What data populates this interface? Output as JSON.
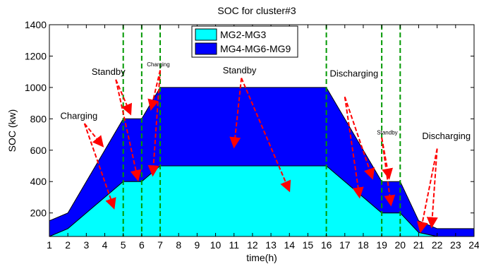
{
  "chart_data": {
    "type": "area",
    "title": "SOC for cluster#3",
    "xlabel": "time(h)",
    "ylabel": "SOC (kw)",
    "xlim": [
      1,
      24
    ],
    "ylim": [
      50,
      1400
    ],
    "xticks": [
      1,
      2,
      3,
      4,
      5,
      6,
      7,
      8,
      9,
      10,
      11,
      12,
      13,
      14,
      15,
      16,
      17,
      18,
      19,
      20,
      21,
      22,
      23,
      24
    ],
    "yticks": [
      200,
      400,
      600,
      800,
      1000,
      1200,
      1400
    ],
    "stacked": true,
    "grid": false,
    "legend_position": "top-center",
    "series": [
      {
        "name": "MG2-MG3",
        "color": "#00ffff",
        "points": [
          [
            1,
            50
          ],
          [
            2,
            100
          ],
          [
            5,
            400
          ],
          [
            6,
            400
          ],
          [
            7,
            500
          ],
          [
            16,
            500
          ],
          [
            19,
            200
          ],
          [
            20,
            200
          ],
          [
            21,
            75
          ],
          [
            22,
            50
          ],
          [
            24,
            50
          ]
        ]
      },
      {
        "name": "MG4-MG6-MG9",
        "color": "#0000ff",
        "points": [
          [
            1,
            100
          ],
          [
            2,
            100
          ],
          [
            5,
            400
          ],
          [
            6,
            400
          ],
          [
            7,
            500
          ],
          [
            16,
            500
          ],
          [
            19,
            200
          ],
          [
            20,
            200
          ],
          [
            21,
            75
          ],
          [
            22,
            50
          ],
          [
            24,
            50
          ]
        ]
      }
    ],
    "vertical_lines": [
      5,
      6,
      7,
      16,
      19,
      20
    ],
    "vertical_line_color": "#009900",
    "annotation_color": "#ff0000",
    "annotations": [
      {
        "text": "Charging",
        "x": 2.6,
        "y": 800,
        "size": 13,
        "arrows": [
          [
            3.9,
            625
          ],
          [
            4.5,
            230
          ]
        ],
        "from": [
          2.9,
          770
        ]
      },
      {
        "text": "Standby",
        "x": 4.2,
        "y": 1080,
        "size": 13,
        "arrows": [
          [
            5.4,
            830
          ],
          [
            5.8,
            410
          ]
        ],
        "from": [
          4.6,
          1050
        ]
      },
      {
        "text": "Charging",
        "x": 6.9,
        "y": 1135,
        "size": 8,
        "arrows": [
          [
            6.5,
            860
          ],
          [
            6.6,
            440
          ]
        ],
        "from": [
          7.0,
          1110
        ]
      },
      {
        "text": "Standby",
        "x": 11.3,
        "y": 1090,
        "size": 13,
        "arrows": [
          [
            11.0,
            620
          ],
          [
            14.0,
            340
          ]
        ],
        "from": [
          11.4,
          1060
        ]
      },
      {
        "text": "Discharging",
        "x": 17.5,
        "y": 1070,
        "size": 13,
        "arrows": [
          [
            18.5,
            420
          ],
          [
            17.8,
            300
          ]
        ],
        "from": [
          17.0,
          940
        ]
      },
      {
        "text": "Standby",
        "x": 19.3,
        "y": 700,
        "size": 8,
        "arrows": [
          [
            19.4,
            420
          ],
          [
            19.5,
            250
          ]
        ],
        "from": [
          19.0,
          680
        ]
      },
      {
        "text": "Discharging",
        "x": 22.5,
        "y": 670,
        "size": 13,
        "arrows": [
          [
            21.1,
            80
          ],
          [
            21.7,
            110
          ]
        ],
        "from": [
          22.0,
          610
        ]
      }
    ]
  }
}
